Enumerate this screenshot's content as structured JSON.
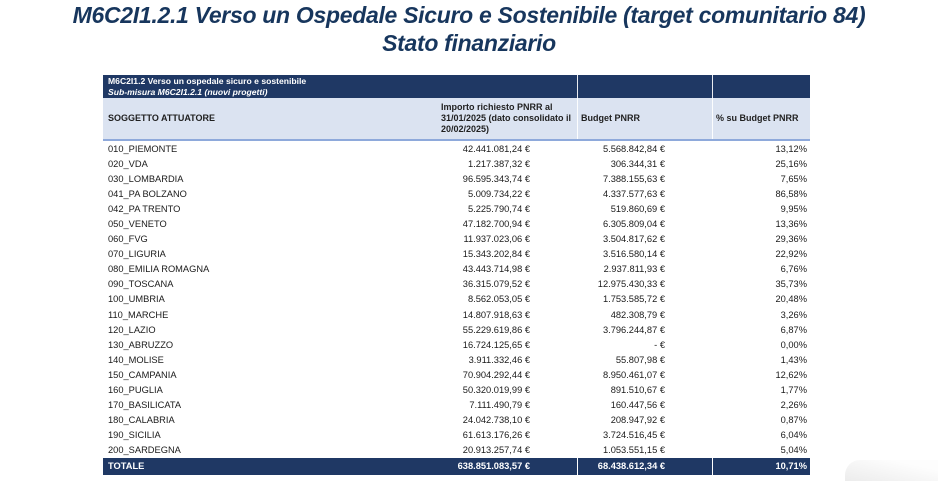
{
  "page": {
    "title_line1": "M6C2I1.2.1 Verso un Ospedale Sicuro e Sostenibile (target comunitario 84)",
    "title_line2": "Stato finanziario"
  },
  "colors": {
    "navy": "#1f3864",
    "title_text": "#17365d",
    "header_bg": "#dbe3f1",
    "header_border": "#8ea9db"
  },
  "table": {
    "band": {
      "line1": "M6C2I1.2 Verso un ospedale sicuro e sostenibile",
      "line2": "Sub-misura M6C2I1.2.1 (nuovi progetti)"
    },
    "columns": [
      "SOGGETTO ATTUATORE",
      "Importo richiesto PNRR al 31/01/2025 (dato consolidato il 20/02/2025)",
      "Budget PNRR",
      "% su Budget PNRR"
    ],
    "rows": [
      {
        "soggetto": "010_PIEMONTE",
        "importo": "42.441.081,24 €",
        "budget": "5.568.842,84 €",
        "pct": "13,12%"
      },
      {
        "soggetto": "020_VDA",
        "importo": "1.217.387,32 €",
        "budget": "306.344,31 €",
        "pct": "25,16%"
      },
      {
        "soggetto": "030_LOMBARDIA",
        "importo": "96.595.343,74 €",
        "budget": "7.388.155,63 €",
        "pct": "7,65%"
      },
      {
        "soggetto": "041_PA BOLZANO",
        "importo": "5.009.734,22 €",
        "budget": "4.337.577,63 €",
        "pct": "86,58%"
      },
      {
        "soggetto": "042_PA TRENTO",
        "importo": "5.225.790,74 €",
        "budget": "519.860,69 €",
        "pct": "9,95%"
      },
      {
        "soggetto": "050_VENETO",
        "importo": "47.182.700,94 €",
        "budget": "6.305.809,04 €",
        "pct": "13,36%"
      },
      {
        "soggetto": "060_FVG",
        "importo": "11.937.023,06 €",
        "budget": "3.504.817,62 €",
        "pct": "29,36%"
      },
      {
        "soggetto": "070_LIGURIA",
        "importo": "15.343.202,84 €",
        "budget": "3.516.580,14 €",
        "pct": "22,92%"
      },
      {
        "soggetto": "080_EMILIA ROMAGNA",
        "importo": "43.443.714,98 €",
        "budget": "2.937.811,93 €",
        "pct": "6,76%"
      },
      {
        "soggetto": "090_TOSCANA",
        "importo": "36.315.079,52 €",
        "budget": "12.975.430,33 €",
        "pct": "35,73%"
      },
      {
        "soggetto": "100_UMBRIA",
        "importo": "8.562.053,05 €",
        "budget": "1.753.585,72 €",
        "pct": "20,48%"
      },
      {
        "soggetto": "110_MARCHE",
        "importo": "14.807.918,63 €",
        "budget": "482.308,79 €",
        "pct": "3,26%"
      },
      {
        "soggetto": "120_LAZIO",
        "importo": "55.229.619,86 €",
        "budget": "3.796.244,87 €",
        "pct": "6,87%"
      },
      {
        "soggetto": "130_ABRUZZO",
        "importo": "16.724.125,65 €",
        "budget": "- €",
        "pct": "0,00%"
      },
      {
        "soggetto": "140_MOLISE",
        "importo": "3.911.332,46 €",
        "budget": "55.807,98 €",
        "pct": "1,43%"
      },
      {
        "soggetto": "150_CAMPANIA",
        "importo": "70.904.292,44 €",
        "budget": "8.950.461,07 €",
        "pct": "12,62%"
      },
      {
        "soggetto": "160_PUGLIA",
        "importo": "50.320.019,99 €",
        "budget": "891.510,67 €",
        "pct": "1,77%"
      },
      {
        "soggetto": "170_BASILICATA",
        "importo": "7.111.490,79 €",
        "budget": "160.447,56 €",
        "pct": "2,26%"
      },
      {
        "soggetto": "180_CALABRIA",
        "importo": "24.042.738,10 €",
        "budget": "208.947,92 €",
        "pct": "0,87%"
      },
      {
        "soggetto": "190_SICILIA",
        "importo": "61.613.176,26 €",
        "budget": "3.724.516,45 €",
        "pct": "6,04%"
      },
      {
        "soggetto": "200_SARDEGNA",
        "importo": "20.913.257,74 €",
        "budget": "1.053.551,15 €",
        "pct": "5,04%"
      }
    ],
    "totale": {
      "label": "TOTALE",
      "importo": "638.851.083,57 €",
      "budget": "68.438.612,34 €",
      "pct": "10,71%"
    }
  }
}
